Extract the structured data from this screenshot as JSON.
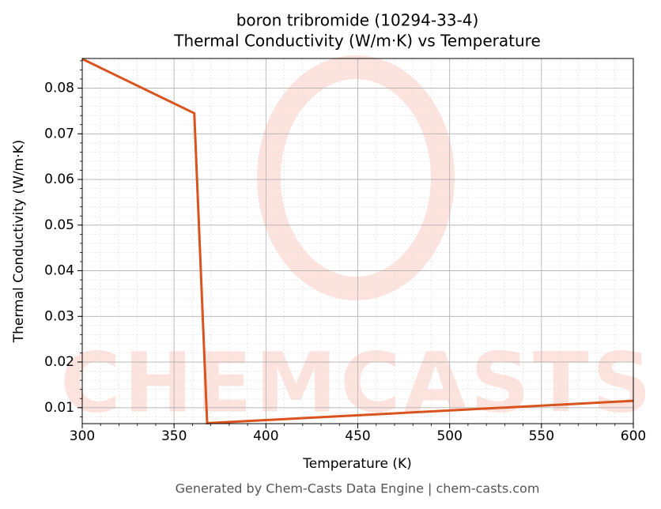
{
  "chart_data": {
    "type": "line",
    "title": "boron tribromide (10294-33-4)",
    "subtitle": "Thermal Conductivity (W/m·K) vs Temperature",
    "x_label": "Temperature (K)",
    "y_label": "Thermal Conductivity (W/m·K)",
    "footer": "Generated by Chem-Casts Data Engine | chem-casts.com",
    "watermark": "CHEMCASTS",
    "x": [
      300,
      361,
      368,
      600
    ],
    "series": [
      {
        "name": "Thermal Conductivity",
        "color": "#d9531e",
        "values": [
          0.0864,
          0.0745,
          0.0066,
          0.0115
        ]
      }
    ],
    "xlim": [
      300,
      600
    ],
    "xticks": [
      300,
      350,
      400,
      450,
      500,
      550,
      600
    ],
    "ylim": [
      0.0065,
      0.0865
    ],
    "yticks": [
      0.01,
      0.02,
      0.03,
      0.04,
      0.05,
      0.06,
      0.07,
      0.08
    ],
    "grid": true,
    "minor_grid": true
  }
}
